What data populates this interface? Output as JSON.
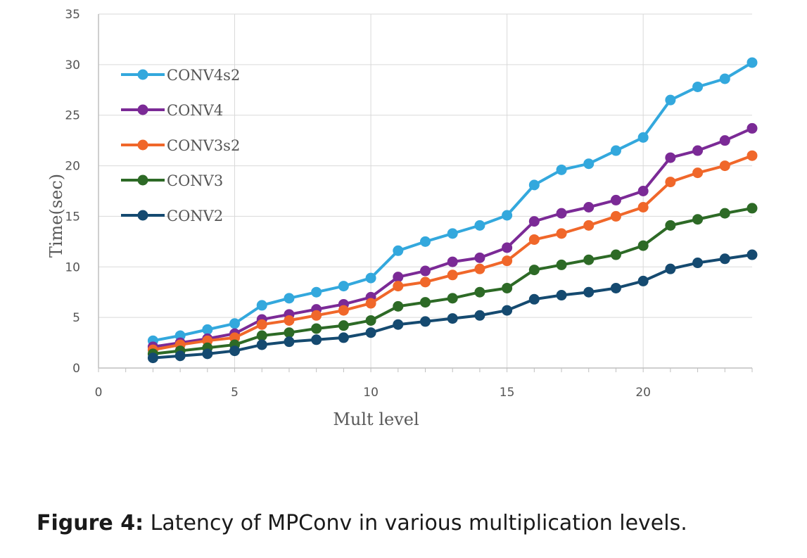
{
  "caption": {
    "label": "Figure 4:",
    "text": " Latency of MPConv in various multiplication levels."
  },
  "chart_data": {
    "type": "line",
    "xlabel": "Mult level",
    "ylabel": "Time(sec)",
    "xlim": [
      0,
      24
    ],
    "ylim": [
      0,
      35
    ],
    "xticks": [
      0,
      5,
      10,
      15,
      20
    ],
    "yticks": [
      0,
      5,
      10,
      15,
      20,
      25,
      30,
      35
    ],
    "grid": true,
    "legend": "top-left",
    "x": [
      2,
      3,
      4,
      5,
      6,
      7,
      8,
      9,
      10,
      11,
      12,
      13,
      14,
      15,
      16,
      17,
      18,
      19,
      20,
      21,
      22,
      23,
      24
    ],
    "series": [
      {
        "name": "CONV4s2",
        "color": "#33a8dd",
        "values": [
          2.7,
          3.2,
          3.8,
          4.4,
          6.2,
          6.9,
          7.5,
          8.1,
          8.9,
          11.6,
          12.5,
          13.3,
          14.1,
          15.1,
          18.1,
          19.6,
          20.2,
          21.5,
          22.8,
          26.5,
          27.8,
          28.6,
          30.2
        ]
      },
      {
        "name": "CONV4",
        "color": "#7b2a96",
        "values": [
          2.1,
          2.5,
          2.9,
          3.4,
          4.8,
          5.3,
          5.8,
          6.3,
          7.0,
          9.0,
          9.6,
          10.5,
          10.9,
          11.9,
          14.5,
          15.3,
          15.9,
          16.6,
          17.5,
          20.8,
          21.5,
          22.5,
          23.7
        ]
      },
      {
        "name": "CONV3s2",
        "color": "#f0672a",
        "values": [
          1.8,
          2.3,
          2.7,
          3.0,
          4.3,
          4.7,
          5.2,
          5.7,
          6.4,
          8.1,
          8.5,
          9.2,
          9.8,
          10.6,
          12.7,
          13.3,
          14.1,
          15.0,
          15.9,
          18.4,
          19.3,
          20.0,
          21.0
        ]
      },
      {
        "name": "CONV3",
        "color": "#2d6a26",
        "values": [
          1.4,
          1.7,
          2.0,
          2.3,
          3.2,
          3.5,
          3.9,
          4.2,
          4.7,
          6.1,
          6.5,
          6.9,
          7.5,
          7.9,
          9.7,
          10.2,
          10.7,
          11.2,
          12.1,
          14.1,
          14.7,
          15.3,
          15.8
        ]
      },
      {
        "name": "CONV2",
        "color": "#154a70",
        "values": [
          1.0,
          1.2,
          1.4,
          1.7,
          2.3,
          2.6,
          2.8,
          3.0,
          3.5,
          4.3,
          4.6,
          4.9,
          5.2,
          5.7,
          6.8,
          7.2,
          7.5,
          7.9,
          8.6,
          9.8,
          10.4,
          10.8,
          11.2
        ]
      }
    ]
  }
}
